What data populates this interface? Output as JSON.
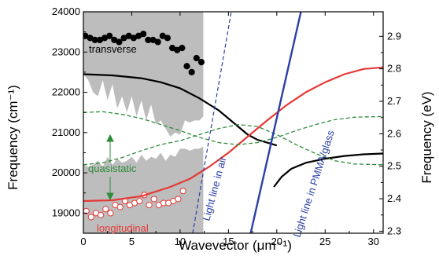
{
  "chart_data": {
    "type": "line",
    "xlabel": "Wavevector (μm⁻¹)",
    "ylabel_left": "Frequency (cm⁻¹)",
    "ylabel_right": "Frequency (eV)",
    "xlim": [
      0,
      31
    ],
    "ylim_left": [
      18500,
      24000
    ],
    "ylim_right": [
      2.2938,
      2.9757
    ],
    "grid": false,
    "x_ticks": [
      0,
      5,
      10,
      15,
      20,
      25,
      30
    ],
    "x_tick_labels": [
      "0",
      "5",
      "10",
      "15",
      "20",
      "25",
      "30"
    ],
    "y_left_ticks": [
      19000,
      20000,
      21000,
      22000,
      23000,
      24000
    ],
    "y_left_tick_labels": [
      "19000",
      "20000",
      "21000",
      "22000",
      "23000",
      "24000"
    ],
    "y_right_ticks": [
      2.3,
      2.4,
      2.5,
      2.6,
      2.7,
      2.8,
      2.9
    ],
    "y_right_tick_labels": [
      "2.3",
      "2.4",
      "2.5",
      "2.6",
      "2.7",
      "2.8",
      "2.9"
    ],
    "annotations": {
      "transverse": "transverse",
      "longitudinal": "longitudinal",
      "quasistatic": "quasistatic",
      "light_air": "Light line in air",
      "light_pmma": "Light line in PMMA/glass"
    },
    "shaded_band": {
      "color": "#bdbdbd",
      "x": [
        0,
        0.5,
        1,
        1.5,
        2,
        2.5,
        3,
        3.5,
        4,
        4.5,
        5,
        5.5,
        6,
        6.5,
        7,
        7.5,
        8,
        8.5,
        9,
        9.5,
        10,
        10.5,
        11,
        11.5,
        12,
        12.4
      ],
      "upper": [
        24000,
        24000,
        24000,
        24000,
        24000,
        24000,
        24000,
        24000,
        24000,
        24000,
        24000,
        24000,
        24000,
        24000,
        24000,
        24000,
        24000,
        24000,
        24000,
        24000,
        24000,
        24000,
        24000,
        24000,
        24000,
        24000
      ],
      "lower": [
        22450,
        22300,
        22000,
        21900,
        22300,
        21800,
        22200,
        21600,
        21900,
        21500,
        21900,
        21400,
        21800,
        21300,
        21700,
        21200,
        21300,
        21100,
        20900,
        21000,
        20950,
        21300,
        21250,
        21300,
        21300,
        21400
      ],
      "lower_band_upper": [
        20200,
        20150,
        20200,
        20300,
        20150,
        20400,
        20200,
        20350,
        20250,
        20300,
        20400,
        20250,
        20450,
        20300,
        20400,
        20350,
        20500,
        20300,
        20450,
        20400,
        20600,
        20600,
        20550,
        20600,
        20600,
        20650
      ],
      "lower_band_lower": [
        18500,
        18500,
        18500,
        18500,
        18500,
        18500,
        18500,
        18500,
        18500,
        18500,
        18500,
        18500,
        18500,
        18500,
        18500,
        18500,
        18500,
        18500,
        18500,
        18500,
        18500,
        18500,
        18500,
        18500,
        18500,
        18500
      ]
    },
    "series": [
      {
        "kind": "scatter",
        "color": "#000000",
        "fill": "#000000",
        "x": [
          0.2,
          0.7,
          1.2,
          1.7,
          2.2,
          2.7,
          3.2,
          3.7,
          4.2,
          4.7,
          5.2,
          5.7,
          6.2,
          6.7,
          7.2,
          7.7,
          8.2,
          8.7,
          9.2,
          9.7,
          10.2,
          10.7,
          11.2,
          11.7,
          12.2
        ],
        "y": [
          23400,
          23350,
          23300,
          23300,
          23350,
          23400,
          23300,
          23250,
          23350,
          23400,
          23350,
          23400,
          23450,
          23300,
          23300,
          23250,
          23400,
          23350,
          23100,
          23050,
          23100,
          22650,
          22500,
          22850,
          22750
        ]
      },
      {
        "kind": "scatter",
        "color": "#e53935",
        "fill": "#ffffff",
        "x": [
          0.3,
          0.8,
          1.3,
          1.8,
          2.3,
          2.8,
          3.3,
          3.8,
          4.3,
          4.8,
          5.3,
          5.8,
          6.3,
          6.8,
          7.3,
          7.8,
          8.3,
          8.8,
          9.3,
          9.8,
          10.3
        ],
        "y": [
          19050,
          18900,
          19000,
          18950,
          19100,
          19000,
          19200,
          19150,
          19300,
          19200,
          19250,
          19300,
          19450,
          19200,
          19350,
          19200,
          19250,
          19250,
          19300,
          19350,
          19550
        ]
      },
      {
        "kind": "line",
        "color": "#000000",
        "width": 2.2,
        "x": [
          0,
          3,
          6,
          8,
          10,
          12,
          14,
          15,
          16,
          17,
          18,
          19,
          20
        ],
        "y": [
          22450,
          22420,
          22350,
          22250,
          22100,
          21850,
          21550,
          21350,
          21150,
          20950,
          20820,
          20750,
          20680
        ]
      },
      {
        "kind": "line",
        "color": "#000000",
        "width": 2.2,
        "x": [
          19.7,
          20.5,
          21.5,
          23,
          25,
          27,
          29,
          31
        ],
        "y": [
          19650,
          19900,
          20100,
          20250,
          20350,
          20420,
          20460,
          20480
        ]
      },
      {
        "kind": "line",
        "color": "#e53935",
        "width": 2.2,
        "x": [
          0,
          3,
          6,
          9,
          11,
          13,
          15,
          17,
          19,
          21,
          23,
          25,
          27,
          29,
          31
        ],
        "y": [
          19300,
          19320,
          19420,
          19650,
          19850,
          20150,
          20500,
          20900,
          21300,
          21680,
          22000,
          22250,
          22450,
          22580,
          22620
        ]
      },
      {
        "kind": "line",
        "color": "#2e8b3a",
        "width": 1.3,
        "dash": true,
        "x": [
          0,
          2,
          4,
          6,
          8,
          10,
          12,
          14,
          16,
          18,
          20,
          22,
          24,
          26,
          28,
          31
        ],
        "y": [
          21500,
          21520,
          21450,
          21350,
          21200,
          21050,
          20880,
          20750,
          20700,
          20750,
          20880,
          21050,
          21200,
          21320,
          21380,
          21400
        ]
      },
      {
        "kind": "line",
        "color": "#2e8b3a",
        "width": 1.3,
        "dash": true,
        "x": [
          0,
          2,
          4,
          6,
          8,
          10,
          12,
          14,
          16,
          18,
          20,
          22,
          24,
          26,
          28,
          31
        ],
        "y": [
          20200,
          20250,
          20380,
          20550,
          20700,
          20800,
          20950,
          21100,
          21200,
          21150,
          20950,
          20700,
          20480,
          20300,
          20220,
          20200
        ]
      },
      {
        "kind": "line",
        "color": "#2b3fa8",
        "width": 1.2,
        "dash": true,
        "x": [
          11.3,
          15.3
        ],
        "y": [
          18500,
          24000
        ]
      },
      {
        "kind": "line",
        "color": "#2b3fa8",
        "width": 2.4,
        "x": [
          17.3,
          22.5
        ],
        "y": [
          18500,
          24000
        ]
      }
    ]
  }
}
